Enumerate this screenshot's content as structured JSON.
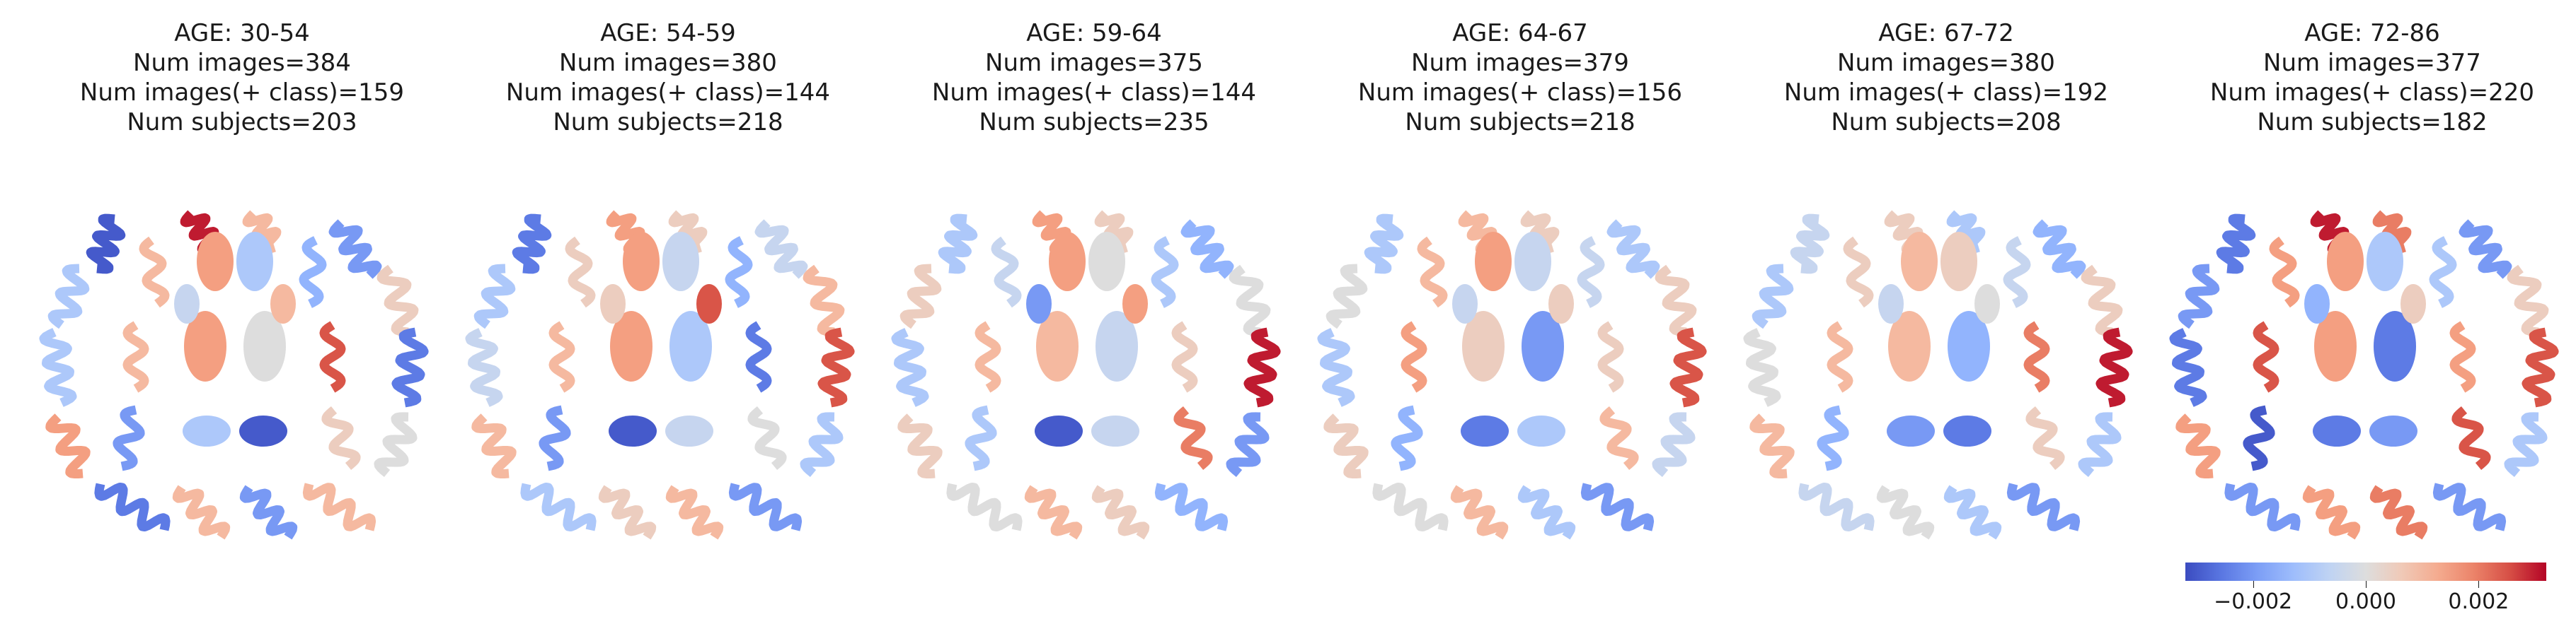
{
  "chart_data": {
    "type": "heatmap",
    "panels": [
      {
        "title_lines": [
          "AGE: 30-54",
          "Num images=384",
          "Num images(+ class)=159",
          "Num subjects=203"
        ],
        "regions": [
          -0.003,
          0.003,
          0.001,
          -0.002,
          -0.001,
          0.001,
          -0.0015,
          0.0005,
          -0.001,
          0.001,
          0.0025,
          -0.0025,
          0.0015,
          -0.002,
          0.0005,
          0.0,
          -0.0025,
          0.001,
          -0.002,
          0.001,
          0.0015,
          -0.001,
          0.0015,
          0.0,
          -0.0005,
          0.001,
          -0.001,
          -0.003
        ]
      },
      {
        "title_lines": [
          "AGE: 54-59",
          "Num images=380",
          "Num images(+ class)=144",
          "Num subjects=218"
        ],
        "regions": [
          -0.0025,
          0.0015,
          0.0005,
          -0.0005,
          -0.001,
          0.0005,
          -0.0015,
          0.001,
          -0.0005,
          0.001,
          -0.0025,
          0.0025,
          0.001,
          -0.002,
          0.0,
          -0.001,
          -0.001,
          0.0005,
          0.001,
          -0.002,
          0.0015,
          -0.0005,
          0.0015,
          -0.001,
          0.0005,
          0.0025,
          -0.003,
          -0.0005
        ]
      },
      {
        "title_lines": [
          "AGE: 59-64",
          "Num images=375",
          "Num images(+ class)=144",
          "Num subjects=235"
        ],
        "regions": [
          -0.001,
          0.0015,
          0.0005,
          -0.0015,
          0.0005,
          -0.0005,
          -0.001,
          0.0,
          -0.001,
          0.001,
          0.0005,
          0.003,
          0.0005,
          -0.001,
          0.002,
          -0.002,
          0.0,
          0.001,
          0.0005,
          -0.0015,
          0.0015,
          0.0,
          0.001,
          -0.0005,
          -0.002,
          0.0015,
          -0.003,
          -0.0005
        ]
      },
      {
        "title_lines": [
          "AGE: 64-67",
          "Num images=379",
          "Num images(+ class)=156",
          "Num subjects=218"
        ],
        "regions": [
          -0.001,
          0.001,
          0.0005,
          -0.001,
          0.0,
          0.001,
          -0.0005,
          0.0005,
          -0.001,
          0.0015,
          0.0005,
          0.0025,
          0.0005,
          -0.0015,
          0.001,
          -0.0005,
          0.0,
          0.001,
          -0.001,
          -0.002,
          0.0015,
          -0.0005,
          0.0005,
          -0.002,
          -0.0005,
          0.0005,
          -0.0025,
          -0.001
        ]
      },
      {
        "title_lines": [
          "AGE: 67-72",
          "Num images=380",
          "Num images(+ class)=192",
          "Num subjects=208"
        ],
        "regions": [
          -0.0005,
          0.0005,
          -0.001,
          -0.0015,
          -0.001,
          0.0005,
          -0.0005,
          0.0005,
          0.0,
          0.001,
          0.002,
          0.003,
          0.001,
          -0.0015,
          0.0005,
          -0.001,
          -0.0005,
          0.0,
          -0.001,
          -0.002,
          0.001,
          0.0005,
          0.001,
          -0.0015,
          -0.0005,
          0.0,
          -0.002,
          -0.0025
        ]
      },
      {
        "title_lines": [
          "AGE: 72-86",
          "Num images=377",
          "Num images(+ class)=220",
          "Num subjects=182"
        ],
        "regions": [
          -0.0025,
          0.003,
          0.002,
          -0.002,
          -0.002,
          0.0015,
          -0.001,
          0.0005,
          -0.0025,
          0.0025,
          0.0015,
          0.0025,
          0.0015,
          -0.003,
          0.0025,
          -0.001,
          -0.002,
          0.0015,
          0.002,
          -0.002,
          0.0015,
          -0.001,
          0.0015,
          -0.0025,
          -0.0015,
          0.0005,
          -0.0025,
          -0.002
        ]
      }
    ],
    "colorbar": {
      "colormap": "coolwarm",
      "vmin": -0.0032,
      "vmax": 0.0032,
      "ticks": [
        -0.002,
        0.0,
        0.002
      ],
      "tick_labels": [
        "−0.002",
        "0.000",
        "0.002"
      ]
    }
  }
}
